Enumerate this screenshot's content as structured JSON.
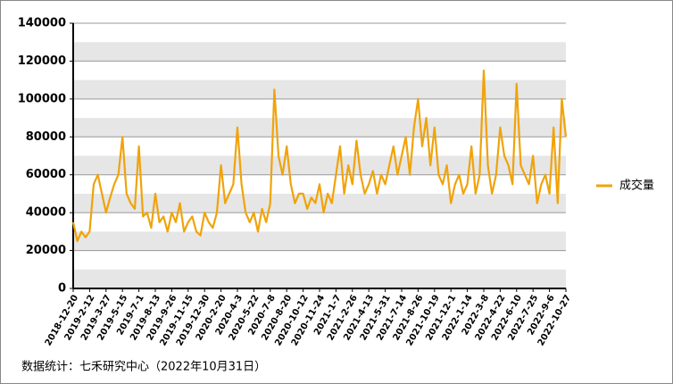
{
  "chart_data": {
    "type": "line",
    "categories": [
      "2018-12-20",
      null,
      null,
      null,
      "2019-2-12",
      null,
      null,
      null,
      "2019-3-27",
      null,
      null,
      null,
      "2019-5-15",
      null,
      null,
      null,
      "2019-7-1",
      null,
      null,
      null,
      "2019-8-13",
      null,
      null,
      null,
      "2019-9-26",
      null,
      null,
      null,
      "2019-11-15",
      null,
      null,
      null,
      "2019-12-30",
      null,
      null,
      null,
      "2020-2-20",
      null,
      null,
      null,
      "2020-4-3",
      null,
      null,
      null,
      "2020-5-22",
      null,
      null,
      null,
      "2020-7-8",
      null,
      null,
      null,
      "2020-8-20",
      null,
      null,
      null,
      "2020-10-12",
      null,
      null,
      null,
      "2020-11-24",
      null,
      null,
      null,
      "2021-1-7",
      null,
      null,
      null,
      "2021-2-26",
      null,
      null,
      null,
      "2021-4-13",
      null,
      null,
      null,
      "2021-5-31",
      null,
      null,
      null,
      "2021-7-14",
      null,
      null,
      null,
      "2021-8-26",
      null,
      null,
      null,
      "2021-10-19",
      null,
      null,
      null,
      "2021-12-1",
      null,
      null,
      null,
      "2022-1-14",
      null,
      null,
      null,
      "2022-3-8",
      null,
      null,
      null,
      "2022-4-22",
      null,
      null,
      null,
      "2022-6-10",
      null,
      null,
      null,
      "2022-7-25",
      null,
      null,
      null,
      "2022-9-6",
      null,
      null,
      null,
      "2022-10-27"
    ],
    "series": [
      {
        "name": "成交量",
        "color": "#f0a30a",
        "values": [
          35000,
          25000,
          30000,
          27000,
          30000,
          55000,
          60000,
          50000,
          40000,
          48000,
          55000,
          60000,
          80000,
          50000,
          45000,
          42000,
          75000,
          38000,
          40000,
          32000,
          50000,
          35000,
          38000,
          30000,
          40000,
          35000,
          45000,
          30000,
          35000,
          38000,
          30000,
          28000,
          40000,
          35000,
          32000,
          40000,
          65000,
          45000,
          50000,
          55000,
          85000,
          55000,
          40000,
          35000,
          40000,
          30000,
          42000,
          35000,
          45000,
          105000,
          70000,
          60000,
          75000,
          55000,
          45000,
          50000,
          50000,
          42000,
          48000,
          45000,
          55000,
          40000,
          50000,
          45000,
          60000,
          75000,
          50000,
          65000,
          55000,
          78000,
          60000,
          50000,
          55000,
          62000,
          50000,
          60000,
          55000,
          65000,
          75000,
          60000,
          70000,
          80000,
          60000,
          85000,
          100000,
          75000,
          90000,
          65000,
          85000,
          60000,
          55000,
          65000,
          45000,
          55000,
          60000,
          50000,
          55000,
          75000,
          50000,
          60000,
          115000,
          65000,
          50000,
          60000,
          85000,
          70000,
          65000,
          55000,
          108000,
          65000,
          60000,
          55000,
          70000,
          45000,
          55000,
          60000,
          50000,
          85000,
          45000,
          100000,
          80000
        ]
      }
    ],
    "ylim": [
      0,
      140000
    ],
    "yticks": [
      0,
      20000,
      40000,
      60000,
      80000,
      100000,
      120000,
      140000
    ],
    "grid": true,
    "legend": "right",
    "source": "数据统计：七禾研究中心（2022年10月31日）"
  }
}
